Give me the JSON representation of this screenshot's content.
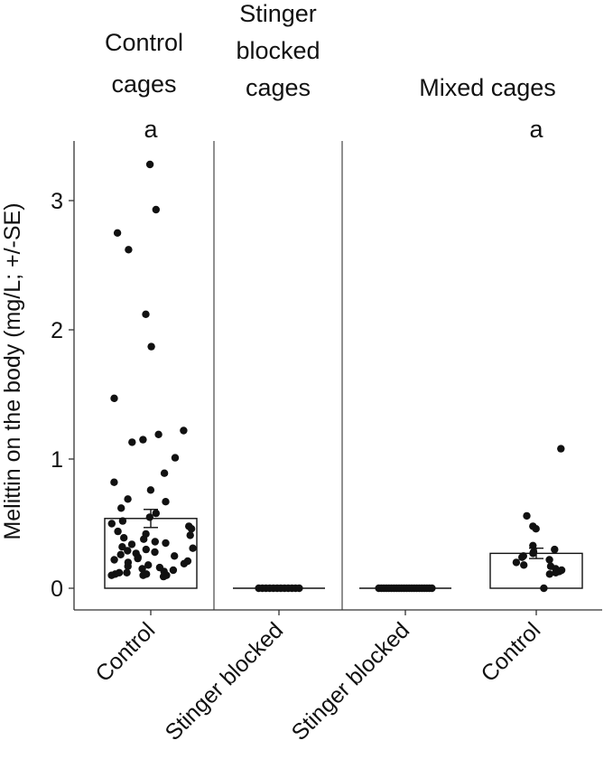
{
  "chart_data": {
    "type": "bar",
    "ylabel": "Melittin on the body (mg/L; +/-SE)",
    "ylim": [
      0,
      3.4
    ],
    "yticks": [
      0,
      1,
      2,
      3
    ],
    "grid": false,
    "panels": [
      {
        "label": [
          "Control",
          "cages"
        ],
        "categories": [
          "Control"
        ]
      },
      {
        "label": [
          "Stinger",
          "blocked",
          "cages"
        ],
        "categories": [
          "Stinger blocked"
        ]
      },
      {
        "label": [
          "Mixed cages"
        ],
        "categories": [
          "Stinger blocked",
          "Control"
        ]
      }
    ],
    "categories": [
      "Control",
      "Stinger blocked",
      "Stinger blocked",
      "Control"
    ],
    "series": [
      {
        "values": [
          0.54,
          0.0,
          0.0,
          0.27
        ],
        "se": [
          0.07,
          0.0,
          0.0,
          0.04
        ]
      }
    ],
    "significance": [
      "a",
      "",
      "",
      "a"
    ],
    "points": [
      [
        3.28,
        2.93,
        2.75,
        2.62,
        2.12,
        1.87,
        1.47,
        1.22,
        1.19,
        1.15,
        1.13,
        1.01,
        0.89,
        0.82,
        0.76,
        0.69,
        0.67,
        0.62,
        0.58,
        0.55,
        0.52,
        0.5,
        0.48,
        0.46,
        0.44,
        0.42,
        0.41,
        0.39,
        0.38,
        0.36,
        0.35,
        0.34,
        0.32,
        0.31,
        0.3,
        0.29,
        0.28,
        0.27,
        0.26,
        0.25,
        0.24,
        0.23,
        0.22,
        0.21,
        0.2,
        0.19,
        0.18,
        0.17,
        0.16,
        0.15,
        0.14,
        0.13,
        0.12,
        0.12,
        0.11,
        0.11,
        0.1,
        0.1,
        0.1,
        0.09
      ],
      [
        0,
        0,
        0,
        0,
        0,
        0,
        0,
        0,
        0,
        0,
        0,
        0
      ],
      [
        0,
        0,
        0,
        0,
        0,
        0,
        0,
        0,
        0,
        0,
        0,
        0,
        0,
        0,
        0,
        0,
        0,
        0,
        0,
        0,
        0,
        0
      ],
      [
        1.08,
        0.56,
        0.48,
        0.46,
        0.33,
        0.3,
        0.28,
        0.27,
        0.25,
        0.24,
        0.22,
        0.2,
        0.18,
        0.17,
        0.15,
        0.14,
        0.13,
        0.12,
        0.11,
        0.0
      ]
    ]
  }
}
